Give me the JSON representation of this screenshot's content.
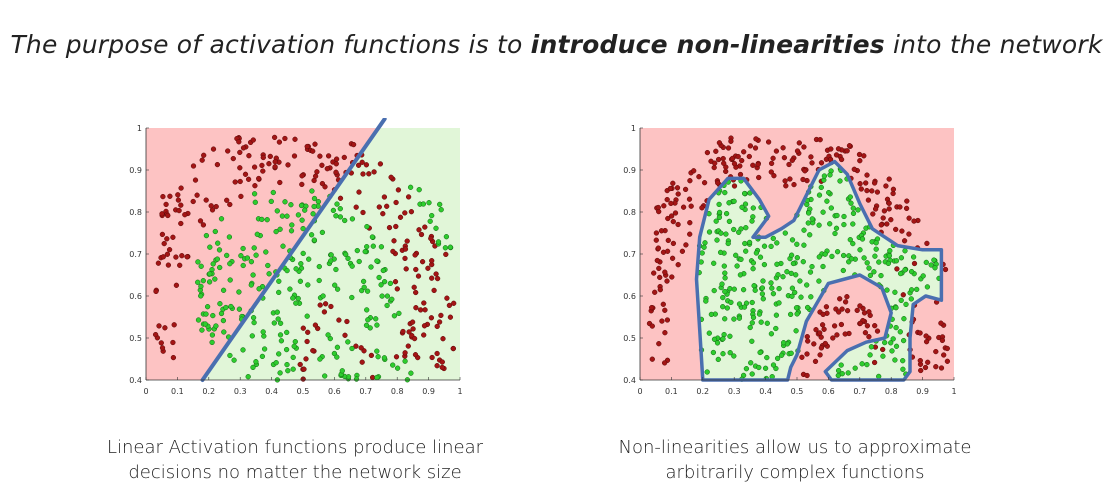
{
  "title": {
    "part1": "The purpose of activation functions is to ",
    "bold": "introduce non-linearities",
    "part2": " into the network"
  },
  "captions": {
    "left_line1": "Linear Activation functions produce linear",
    "left_line2": "decisions no matter the network size",
    "right_line1": "Non-linearities allow us to approximate",
    "right_line2": "arbitrarily complex functions"
  },
  "colors": {
    "class_red_bg": "#fdc3c3",
    "class_green_bg": "#e1f6d8",
    "red_points": "#a31515",
    "green_points": "#2ecc2e",
    "boundary": "#4a6fb0"
  },
  "chart_data": [
    {
      "type": "scatter",
      "title": "",
      "xlabel": "",
      "ylabel": "",
      "xlim": [
        0,
        1
      ],
      "ylim": [
        0.4,
        1
      ],
      "xticks": [
        "0",
        "0.1",
        "0.2",
        "0.3",
        "0.4",
        "0.5",
        "0.6",
        "0.7",
        "0.8",
        "0.9",
        "1"
      ],
      "yticks": [
        "0.4",
        "0.5",
        "0.6",
        "0.7",
        "0.8",
        "0.9",
        "1"
      ],
      "grid": false,
      "boundary": "linear",
      "boundary_line": [
        [
          0.18,
          0.4
        ],
        [
          0.74,
          1.0
        ]
      ],
      "series": [
        {
          "color": "red",
          "count": 260
        },
        {
          "color": "green",
          "count": 280
        }
      ]
    },
    {
      "type": "scatter",
      "title": "",
      "xlabel": "",
      "ylabel": "",
      "xlim": [
        0,
        1
      ],
      "ylim": [
        0.4,
        1
      ],
      "xticks": [
        "0",
        "0.1",
        "0.2",
        "0.3",
        "0.4",
        "0.5",
        "0.6",
        "0.7",
        "0.8",
        "0.9",
        "1"
      ],
      "yticks": [
        "0.4",
        "0.5",
        "0.6",
        "0.7",
        "0.8",
        "0.9",
        "1"
      ],
      "grid": false,
      "boundary": "non-linear",
      "series": [
        {
          "color": "red",
          "count": 300
        },
        {
          "color": "green",
          "count": 360
        }
      ]
    }
  ]
}
